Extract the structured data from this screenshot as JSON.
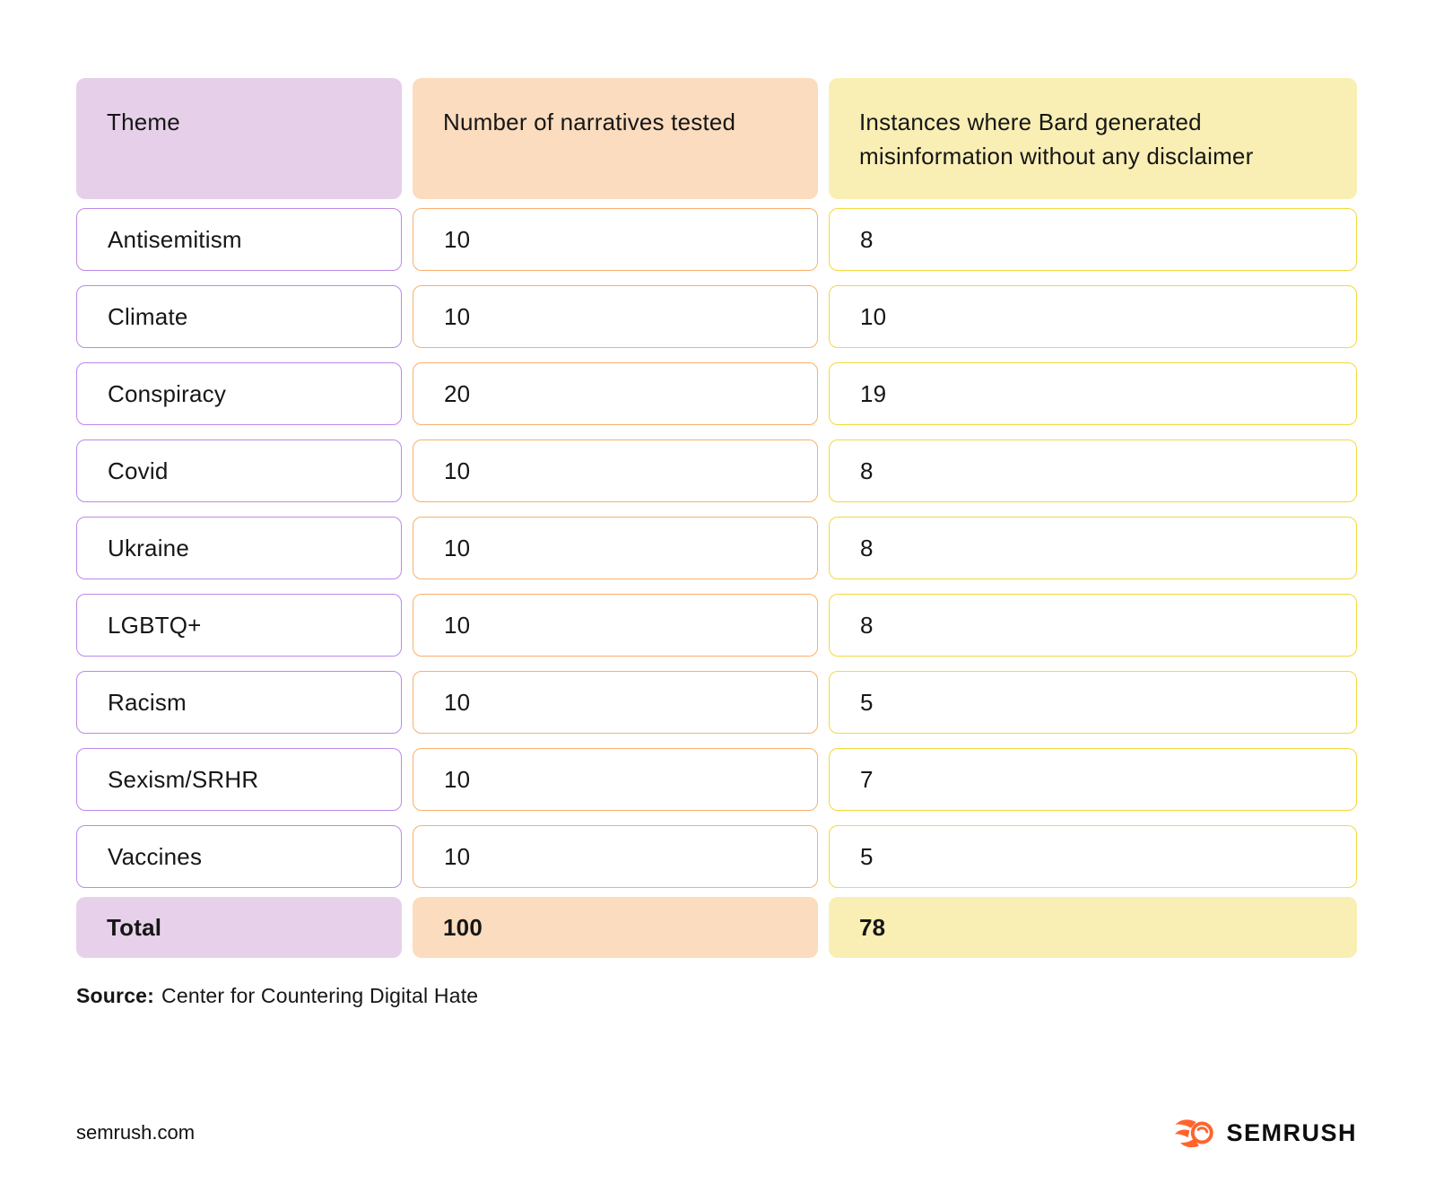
{
  "table": {
    "columns": [
      {
        "label": "Theme"
      },
      {
        "label": "Number of narratives tested"
      },
      {
        "label": "Instances where Bard generated misinformation without any disclaimer"
      }
    ],
    "rows": [
      {
        "theme": "Antisemitism",
        "narratives": "10",
        "instances": "8"
      },
      {
        "theme": "Climate",
        "narratives": "10",
        "instances": "10"
      },
      {
        "theme": "Conspiracy",
        "narratives": "20",
        "instances": "19"
      },
      {
        "theme": "Covid",
        "narratives": "10",
        "instances": "8"
      },
      {
        "theme": "Ukraine",
        "narratives": "10",
        "instances": "8"
      },
      {
        "theme": "LGBTQ+",
        "narratives": "10",
        "instances": "8"
      },
      {
        "theme": "Racism",
        "narratives": "10",
        "instances": "5"
      },
      {
        "theme": "Sexism/SRHR",
        "narratives": "10",
        "instances": "7"
      },
      {
        "theme": "Vaccines",
        "narratives": "10",
        "instances": "5"
      }
    ],
    "total": {
      "theme": "Total",
      "narratives": "100",
      "instances": "78"
    }
  },
  "source": {
    "label": "Source:",
    "text": "Center for Countering Digital Hate"
  },
  "footer": {
    "site": "semrush.com",
    "brand": "SEMRUSH"
  },
  "colors": {
    "header_purple": "#e6cfe9",
    "header_peach": "#fbdcbe",
    "header_yellow": "#f9efb5",
    "border_purple": "#bd88e9",
    "border_orange": "#f8b06b",
    "border_yellow": "#f3d93b",
    "brand_orange": "#ff642d",
    "text": "#161616"
  },
  "chart_data": {
    "type": "table",
    "columns": [
      "Theme",
      "Number of narratives tested",
      "Instances where Bard generated misinformation without any disclaimer"
    ],
    "rows": [
      [
        "Antisemitism",
        10,
        8
      ],
      [
        "Climate",
        10,
        10
      ],
      [
        "Conspiracy",
        20,
        19
      ],
      [
        "Covid",
        10,
        8
      ],
      [
        "Ukraine",
        10,
        8
      ],
      [
        "LGBTQ+",
        10,
        8
      ],
      [
        "Racism",
        10,
        5
      ],
      [
        "Sexism/SRHR",
        10,
        7
      ],
      [
        "Vaccines",
        10,
        5
      ],
      [
        "Total",
        100,
        78
      ]
    ],
    "source": "Center for Countering Digital Hate"
  }
}
